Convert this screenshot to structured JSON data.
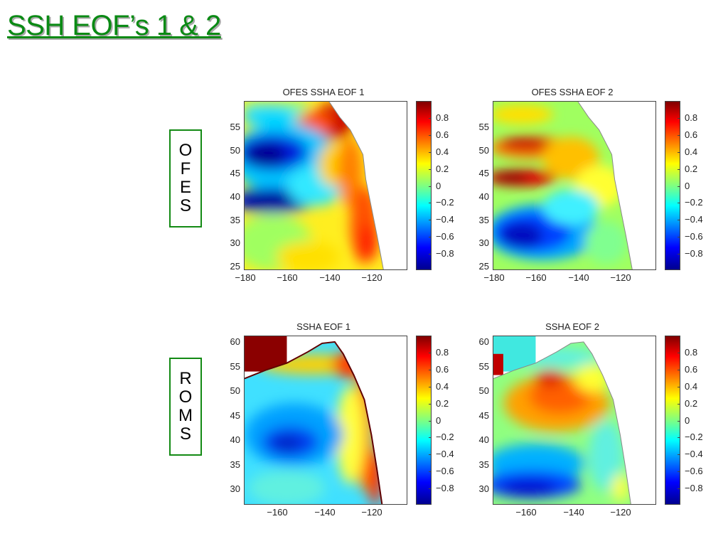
{
  "slide": {
    "title": "SSH EOF’s 1 & 2"
  },
  "row_labels": {
    "ofes": [
      "O",
      "F",
      "E",
      "S"
    ],
    "roms": [
      "R",
      "O",
      "M",
      "S"
    ]
  },
  "colormap": [
    "#00008f",
    "#0000ff",
    "#0080ff",
    "#00ffff",
    "#80ff80",
    "#ffff00",
    "#ff8000",
    "#ff0000",
    "#800000"
  ],
  "panels": [
    {
      "id": "ofes-eof1",
      "title": "OFES SSHA EOF 1",
      "y_ticks": [
        "55",
        "50",
        "45",
        "40",
        "35",
        "30",
        "25"
      ],
      "x_ticks": [
        "−180",
        "−160",
        "−140",
        "−120"
      ],
      "colorbar_ticks": [
        "0.8",
        "0.6",
        "0.4",
        "0.2",
        "0",
        "−0.2",
        "−0.4",
        "−0.6",
        "−0.8"
      ],
      "colorbar_range": [
        -1,
        1
      ]
    },
    {
      "id": "ofes-eof2",
      "title": "OFES SSHA EOF 2",
      "y_ticks": [
        "55",
        "50",
        "45",
        "40",
        "35",
        "30",
        "25"
      ],
      "x_ticks": [
        "−180",
        "−160",
        "−140",
        "−120"
      ],
      "colorbar_ticks": [
        "0.8",
        "0.6",
        "0.4",
        "0.2",
        "0",
        "−0.2",
        "−0.4",
        "−0.6",
        "−0.8"
      ],
      "colorbar_range": [
        -1,
        1
      ]
    },
    {
      "id": "roms-eof1",
      "title": "SSHA EOF 1",
      "y_ticks": [
        "60",
        "55",
        "50",
        "45",
        "40",
        "35",
        "30"
      ],
      "x_ticks": [
        "−160",
        "−140",
        "−120"
      ],
      "colorbar_ticks": [
        "0.8",
        "0.6",
        "0.4",
        "0.2",
        "0",
        "−0.2",
        "−0.4",
        "−0.6",
        "−0.8"
      ],
      "colorbar_range": [
        -1,
        1
      ]
    },
    {
      "id": "roms-eof2",
      "title": "SSHA EOF 2",
      "y_ticks": [
        "60",
        "55",
        "50",
        "45",
        "40",
        "35",
        "30"
      ],
      "x_ticks": [
        "−160",
        "−140",
        "−120"
      ],
      "colorbar_ticks": [
        "0.8",
        "0.6",
        "0.4",
        "0.2",
        "0",
        "−0.2",
        "−0.4",
        "−0.6",
        "−0.8"
      ],
      "colorbar_range": [
        -1,
        1
      ]
    }
  ]
}
